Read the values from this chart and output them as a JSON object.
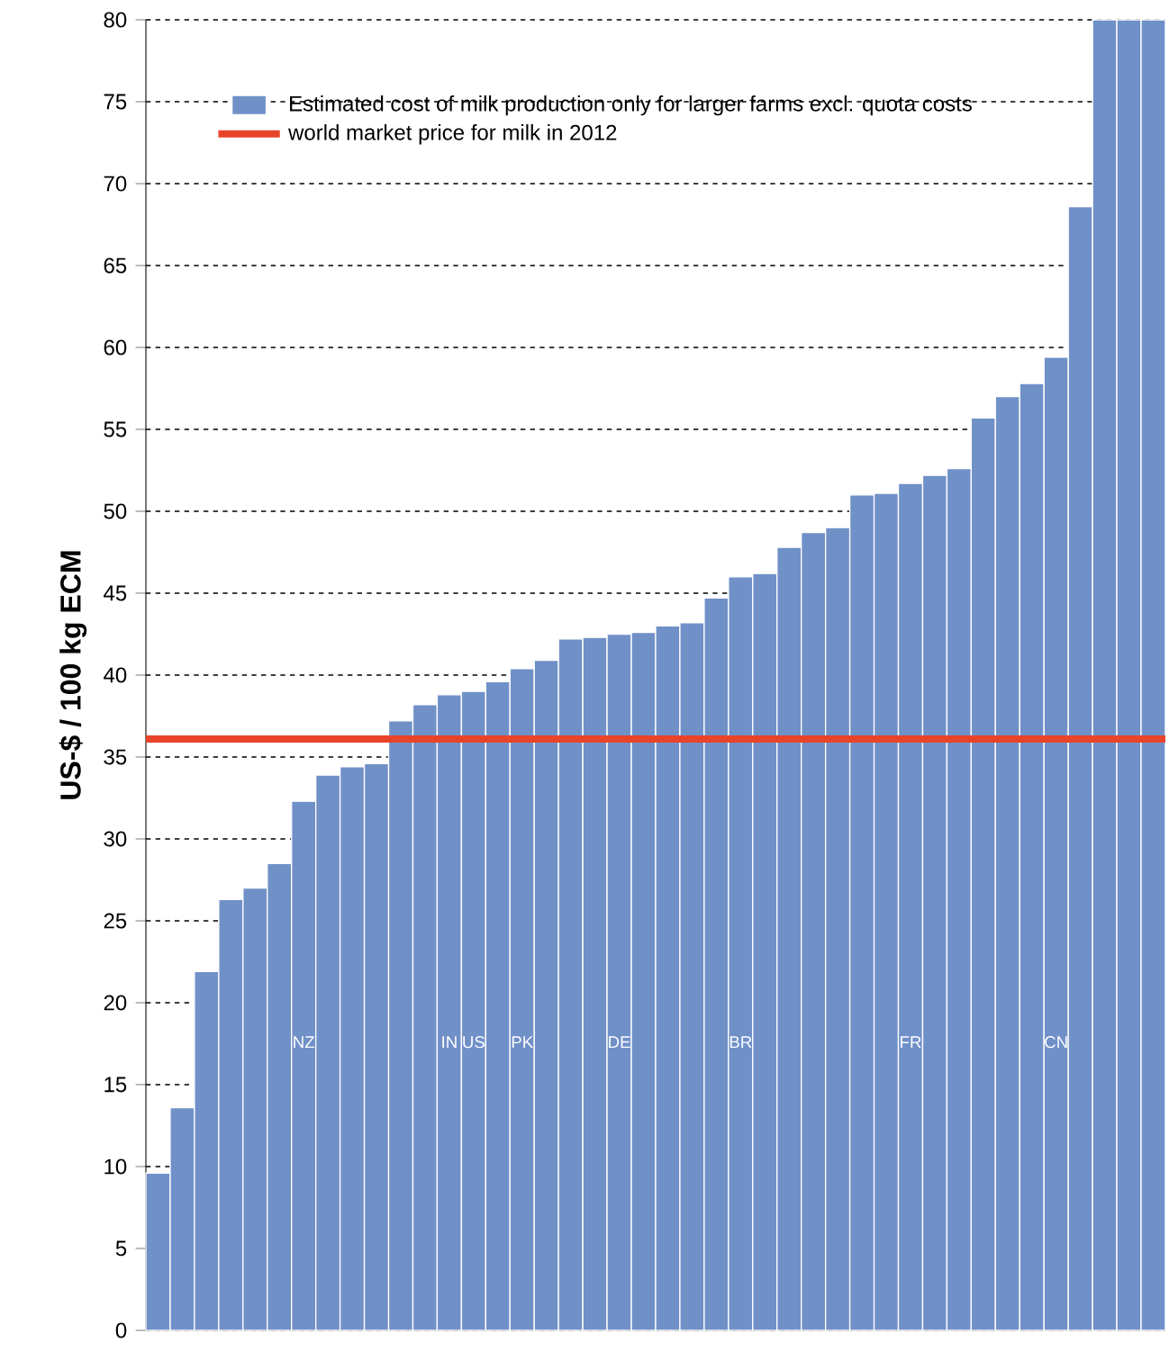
{
  "chart_data": {
    "type": "bar",
    "ylabel": "US-$ / 100 kg ECM",
    "categories": [
      null,
      null,
      null,
      null,
      null,
      null,
      "NZ",
      null,
      null,
      null,
      null,
      null,
      "IN",
      "US",
      null,
      "PK",
      null,
      null,
      null,
      "DE",
      null,
      null,
      null,
      null,
      "BR",
      null,
      null,
      null,
      null,
      null,
      null,
      "FR",
      null,
      null,
      null,
      null,
      null,
      "CN",
      null,
      null,
      null,
      null
    ],
    "series": [
      {
        "name": "Estimated cost of milk production only for larger farms excl. quota costs",
        "color": "#7090c8",
        "values": [
          9.6,
          13.6,
          21.9,
          26.3,
          27.0,
          28.5,
          32.3,
          33.9,
          34.4,
          34.6,
          37.2,
          38.2,
          38.8,
          39.0,
          39.6,
          40.4,
          40.9,
          42.2,
          42.3,
          42.5,
          42.6,
          43.0,
          43.2,
          44.7,
          46.0,
          46.2,
          47.8,
          48.7,
          49.0,
          51.0,
          51.1,
          51.7,
          52.2,
          52.6,
          55.7,
          57.0,
          57.8,
          59.4,
          68.6,
          80,
          80,
          80
        ]
      }
    ],
    "ylim": [
      0,
      80
    ],
    "yticks": [
      0,
      5,
      10,
      15,
      20,
      25,
      30,
      35,
      40,
      45,
      50,
      55,
      60,
      65,
      70,
      75,
      80
    ],
    "grid": "y",
    "legend": "top",
    "ref_lines": [
      {
        "axis": "y",
        "value": 36.1,
        "label": "world market price for milk in 2012",
        "color": "#e8442a"
      }
    ]
  }
}
